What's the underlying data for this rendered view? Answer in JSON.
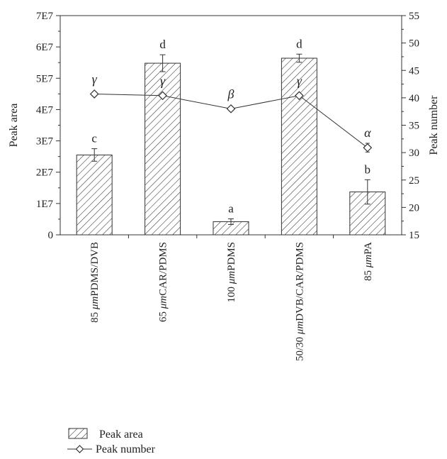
{
  "chart_data": {
    "type": "bar",
    "categories": [
      "85 μmPDMS/DVB",
      "65 μmCAR/PDMS",
      "100 μmPDMS",
      "50/30 μmDVB/CAR/PDMS",
      "85 μmPA"
    ],
    "category_prefix": [
      "85 ",
      "65 ",
      "100 ",
      "50/30 ",
      "85 "
    ],
    "category_unit": [
      "μm",
      "μm",
      "μm",
      "μm",
      "μm"
    ],
    "category_rest": [
      "PDMS/DVB",
      "CAR/PDMS",
      "PDMS",
      "DVB/CAR/PDMS",
      "PA"
    ],
    "series": [
      {
        "name": "Peak area",
        "type": "bar",
        "axis": "left",
        "values": [
          25500000,
          54800000,
          4200000,
          56400000,
          13700000
        ],
        "errors": [
          2000000,
          2700000,
          900000,
          1300000,
          3900000
        ],
        "letters": [
          "c",
          "d",
          "a",
          "d",
          "b"
        ]
      },
      {
        "name": "Peak number",
        "type": "line",
        "axis": "right",
        "marker": "diamond",
        "values": [
          40.7,
          40.4,
          38.0,
          40.4,
          30.9
        ],
        "errors": [
          0.4,
          0,
          0,
          0,
          0.8
        ],
        "letters": [
          "γ",
          "γ",
          "β",
          "γ",
          "α"
        ]
      }
    ],
    "ylabel": "Peak area",
    "y2label": "Peak number",
    "ylim": [
      0,
      70000000
    ],
    "y2lim": [
      15,
      55
    ],
    "yticks": [
      "0",
      "1E7",
      "2E7",
      "3E7",
      "4E7",
      "5E7",
      "6E7",
      "7E7"
    ],
    "y2ticks": [
      "15",
      "20",
      "25",
      "30",
      "35",
      "40",
      "45",
      "50",
      "55"
    ],
    "bar_pattern": "diagonal-hatch",
    "legend_position": "bottom-left",
    "grid": false
  }
}
